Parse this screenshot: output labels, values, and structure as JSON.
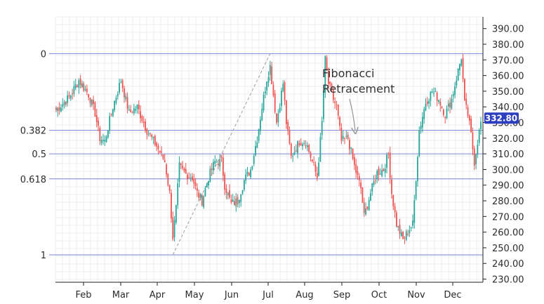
{
  "chart_data": {
    "type": "candlestick",
    "title": "",
    "xlabel": "",
    "ylabel": "",
    "x_ticks": [
      "Feb",
      "Mar",
      "Apr",
      "May",
      "Jun",
      "Jul",
      "Aug",
      "Sep",
      "Oct",
      "Nov",
      "Dec"
    ],
    "y_ticks": [
      "390.00",
      "380.00",
      "370.00",
      "360.00",
      "350.00",
      "340.00",
      "330.00",
      "320.00",
      "310.00",
      "300.00",
      "290.00",
      "280.00",
      "270.00",
      "260.00",
      "250.00",
      "240.00",
      "230.00"
    ],
    "ylim": [
      228,
      393
    ],
    "grid": true,
    "current_price": "332.80",
    "colors": {
      "up": "#26a69a",
      "down": "#ef5350",
      "fib_line": "#7b86d6",
      "price_tag": "#2c3fbf",
      "trend_line": "#9e9e9e"
    },
    "fibonacci": {
      "levels": [
        {
          "label": "0",
          "price": 374
        },
        {
          "label": "0.382",
          "price": 325
        },
        {
          "label": "0.5",
          "price": 310
        },
        {
          "label": "0.618",
          "price": 294
        },
        {
          "label": "1",
          "price": 245.5
        }
      ],
      "annotation_line1": "Fibonacci",
      "annotation_line2": "Retracement"
    },
    "anchors": [
      {
        "x": 0,
        "p": 338
      },
      {
        "x": 8,
        "p": 346
      },
      {
        "x": 14,
        "p": 357
      },
      {
        "x": 20,
        "p": 348
      },
      {
        "x": 24,
        "p": 336
      },
      {
        "x": 27,
        "p": 320
      },
      {
        "x": 30,
        "p": 318
      },
      {
        "x": 35,
        "p": 340
      },
      {
        "x": 40,
        "p": 357
      },
      {
        "x": 45,
        "p": 336
      },
      {
        "x": 50,
        "p": 340
      },
      {
        "x": 56,
        "p": 325
      },
      {
        "x": 62,
        "p": 315
      },
      {
        "x": 67,
        "p": 305
      },
      {
        "x": 70,
        "p": 285
      },
      {
        "x": 72,
        "p": 257
      },
      {
        "x": 74,
        "p": 275
      },
      {
        "x": 76,
        "p": 302
      },
      {
        "x": 80,
        "p": 297
      },
      {
        "x": 84,
        "p": 295
      },
      {
        "x": 87,
        "p": 285
      },
      {
        "x": 90,
        "p": 280
      },
      {
        "x": 94,
        "p": 295
      },
      {
        "x": 98,
        "p": 305
      },
      {
        "x": 102,
        "p": 305
      },
      {
        "x": 104,
        "p": 290
      },
      {
        "x": 108,
        "p": 278
      },
      {
        "x": 112,
        "p": 280
      },
      {
        "x": 116,
        "p": 293
      },
      {
        "x": 120,
        "p": 300
      },
      {
        "x": 124,
        "p": 320
      },
      {
        "x": 127,
        "p": 340
      },
      {
        "x": 130,
        "p": 358
      },
      {
        "x": 132,
        "p": 366
      },
      {
        "x": 134,
        "p": 348
      },
      {
        "x": 136,
        "p": 330
      },
      {
        "x": 140,
        "p": 355
      },
      {
        "x": 142,
        "p": 330
      },
      {
        "x": 145,
        "p": 308
      },
      {
        "x": 150,
        "p": 318
      },
      {
        "x": 154,
        "p": 318
      },
      {
        "x": 158,
        "p": 305
      },
      {
        "x": 161,
        "p": 295
      },
      {
        "x": 164,
        "p": 330
      },
      {
        "x": 166,
        "p": 370
      },
      {
        "x": 168,
        "p": 355
      },
      {
        "x": 171,
        "p": 345
      },
      {
        "x": 173,
        "p": 340
      },
      {
        "x": 176,
        "p": 318
      },
      {
        "x": 180,
        "p": 320
      },
      {
        "x": 184,
        "p": 302
      },
      {
        "x": 188,
        "p": 288
      },
      {
        "x": 190,
        "p": 270
      },
      {
        "x": 194,
        "p": 285
      },
      {
        "x": 198,
        "p": 298
      },
      {
        "x": 202,
        "p": 300
      },
      {
        "x": 205,
        "p": 310
      },
      {
        "x": 207,
        "p": 285
      },
      {
        "x": 210,
        "p": 265
      },
      {
        "x": 214,
        "p": 255
      },
      {
        "x": 218,
        "p": 262
      },
      {
        "x": 220,
        "p": 265
      },
      {
        "x": 222,
        "p": 295
      },
      {
        "x": 224,
        "p": 325
      },
      {
        "x": 228,
        "p": 343
      },
      {
        "x": 232,
        "p": 350
      },
      {
        "x": 236,
        "p": 345
      },
      {
        "x": 240,
        "p": 335
      },
      {
        "x": 244,
        "p": 345
      },
      {
        "x": 248,
        "p": 363
      },
      {
        "x": 250,
        "p": 372
      },
      {
        "x": 252,
        "p": 342
      },
      {
        "x": 254,
        "p": 335
      },
      {
        "x": 256,
        "p": 322
      },
      {
        "x": 258,
        "p": 305
      },
      {
        "x": 260,
        "p": 318
      },
      {
        "x": 262,
        "p": 330
      }
    ]
  }
}
